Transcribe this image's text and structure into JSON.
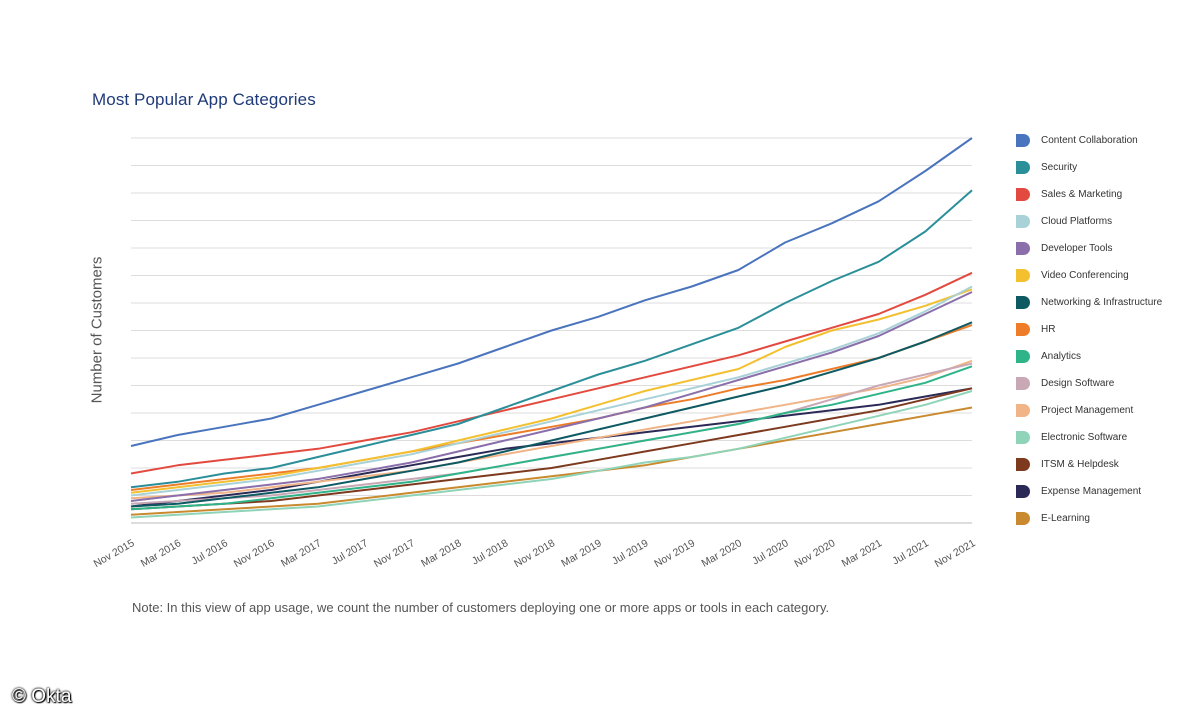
{
  "page": {
    "note": "Note: In this view of app usage, we count the number of customers deploying one or more apps or tools in each category.",
    "credit": "© Okta"
  },
  "chart_data": {
    "type": "line",
    "title": "Most Popular App Categories",
    "xlabel": "",
    "ylabel": "Number of Customers",
    "x_ticks": [
      "Nov 2015",
      "Mar 2016",
      "Jul 2016",
      "Nov 2016",
      "Mar 2017",
      "Jul 2017",
      "Nov 2017",
      "Mar 2018",
      "Jul 2018",
      "Nov 2018",
      "Mar 2019",
      "Jul 2019",
      "Nov 2019",
      "Mar 2020",
      "Jul 2020",
      "Nov 2020",
      "Mar 2021",
      "Jul 2021",
      "Nov 2021"
    ],
    "y_ticks_labeled": false,
    "ylim": [
      0,
      14
    ],
    "grid": true,
    "legend_position": "right",
    "series": [
      {
        "name": "Content Collaboration",
        "color": "#4a74bd",
        "values": [
          2.8,
          3.2,
          3.5,
          3.8,
          4.3,
          4.8,
          5.3,
          5.8,
          6.4,
          7.0,
          7.5,
          8.1,
          8.6,
          9.2,
          10.2,
          10.9,
          11.7,
          12.8,
          14.0
        ]
      },
      {
        "name": "Security",
        "color": "#2b8f9a",
        "values": [
          1.3,
          1.5,
          1.8,
          2.0,
          2.4,
          2.8,
          3.2,
          3.6,
          4.2,
          4.8,
          5.4,
          5.9,
          6.5,
          7.1,
          8.0,
          8.8,
          9.5,
          10.6,
          12.1
        ]
      },
      {
        "name": "Sales & Marketing",
        "color": "#e34a3f",
        "values": [
          1.8,
          2.1,
          2.3,
          2.5,
          2.7,
          3.0,
          3.3,
          3.7,
          4.1,
          4.5,
          4.9,
          5.3,
          5.7,
          6.1,
          6.6,
          7.1,
          7.6,
          8.3,
          9.1
        ]
      },
      {
        "name": "Cloud Platforms",
        "color": "#a8d2d8",
        "values": [
          1.0,
          1.2,
          1.4,
          1.6,
          1.9,
          2.2,
          2.5,
          2.9,
          3.3,
          3.7,
          4.1,
          4.5,
          4.9,
          5.3,
          5.8,
          6.3,
          6.9,
          7.7,
          8.6
        ]
      },
      {
        "name": "Developer Tools",
        "color": "#8a6fab",
        "values": [
          0.8,
          1.0,
          1.2,
          1.4,
          1.6,
          1.9,
          2.2,
          2.6,
          3.0,
          3.4,
          3.8,
          4.2,
          4.7,
          5.2,
          5.7,
          6.2,
          6.8,
          7.6,
          8.4
        ]
      },
      {
        "name": "Video Conferencing",
        "color": "#f3c030",
        "values": [
          1.1,
          1.3,
          1.5,
          1.7,
          2.0,
          2.3,
          2.6,
          3.0,
          3.4,
          3.8,
          4.3,
          4.8,
          5.2,
          5.6,
          6.4,
          7.0,
          7.4,
          7.9,
          8.5
        ]
      },
      {
        "name": "Networking & Infrastructure",
        "color": "#0e5a63",
        "values": [
          0.6,
          0.7,
          0.9,
          1.1,
          1.3,
          1.6,
          1.9,
          2.2,
          2.6,
          3.0,
          3.4,
          3.8,
          4.2,
          4.6,
          5.0,
          5.5,
          6.0,
          6.6,
          7.3
        ]
      },
      {
        "name": "HR",
        "color": "#ee7d2a",
        "values": [
          1.2,
          1.4,
          1.6,
          1.8,
          2.0,
          2.3,
          2.6,
          2.9,
          3.2,
          3.5,
          3.8,
          4.2,
          4.5,
          4.9,
          5.2,
          5.6,
          6.0,
          6.6,
          7.2
        ]
      },
      {
        "name": "Analytics",
        "color": "#2fb489",
        "values": [
          0.5,
          0.6,
          0.7,
          0.9,
          1.1,
          1.3,
          1.5,
          1.8,
          2.1,
          2.4,
          2.7,
          3.0,
          3.3,
          3.6,
          4.0,
          4.3,
          4.7,
          5.1,
          5.7
        ]
      },
      {
        "name": "Design Software",
        "color": "#c9a8b6",
        "values": [
          0.7,
          0.8,
          0.9,
          1.0,
          1.2,
          1.4,
          1.6,
          1.8,
          2.1,
          2.4,
          2.7,
          3.0,
          3.3,
          3.6,
          4.0,
          4.5,
          5.0,
          5.4,
          5.8
        ]
      },
      {
        "name": "Project Management",
        "color": "#f0b487",
        "values": [
          0.9,
          1.0,
          1.1,
          1.3,
          1.5,
          1.7,
          1.9,
          2.2,
          2.5,
          2.8,
          3.1,
          3.4,
          3.7,
          4.0,
          4.3,
          4.6,
          4.9,
          5.3,
          5.9
        ]
      },
      {
        "name": "Electronic Software",
        "color": "#8fd4b8",
        "values": [
          0.2,
          0.3,
          0.4,
          0.5,
          0.6,
          0.8,
          1.0,
          1.2,
          1.4,
          1.6,
          1.9,
          2.2,
          2.4,
          2.7,
          3.1,
          3.5,
          3.9,
          4.3,
          4.8
        ]
      },
      {
        "name": "ITSM & Helpdesk",
        "color": "#7d3a1f",
        "values": [
          0.5,
          0.6,
          0.7,
          0.8,
          1.0,
          1.2,
          1.4,
          1.6,
          1.8,
          2.0,
          2.3,
          2.6,
          2.9,
          3.2,
          3.5,
          3.8,
          4.1,
          4.5,
          4.9
        ]
      },
      {
        "name": "Expense Management",
        "color": "#2b2a57",
        "values": [
          0.6,
          0.8,
          1.0,
          1.2,
          1.5,
          1.8,
          2.1,
          2.4,
          2.7,
          2.9,
          3.1,
          3.3,
          3.5,
          3.7,
          3.9,
          4.1,
          4.3,
          4.6,
          4.9
        ]
      },
      {
        "name": "E-Learning",
        "color": "#c98a2f",
        "values": [
          0.3,
          0.4,
          0.5,
          0.6,
          0.7,
          0.9,
          1.1,
          1.3,
          1.5,
          1.7,
          1.9,
          2.1,
          2.4,
          2.7,
          3.0,
          3.3,
          3.6,
          3.9,
          4.2
        ]
      }
    ]
  }
}
